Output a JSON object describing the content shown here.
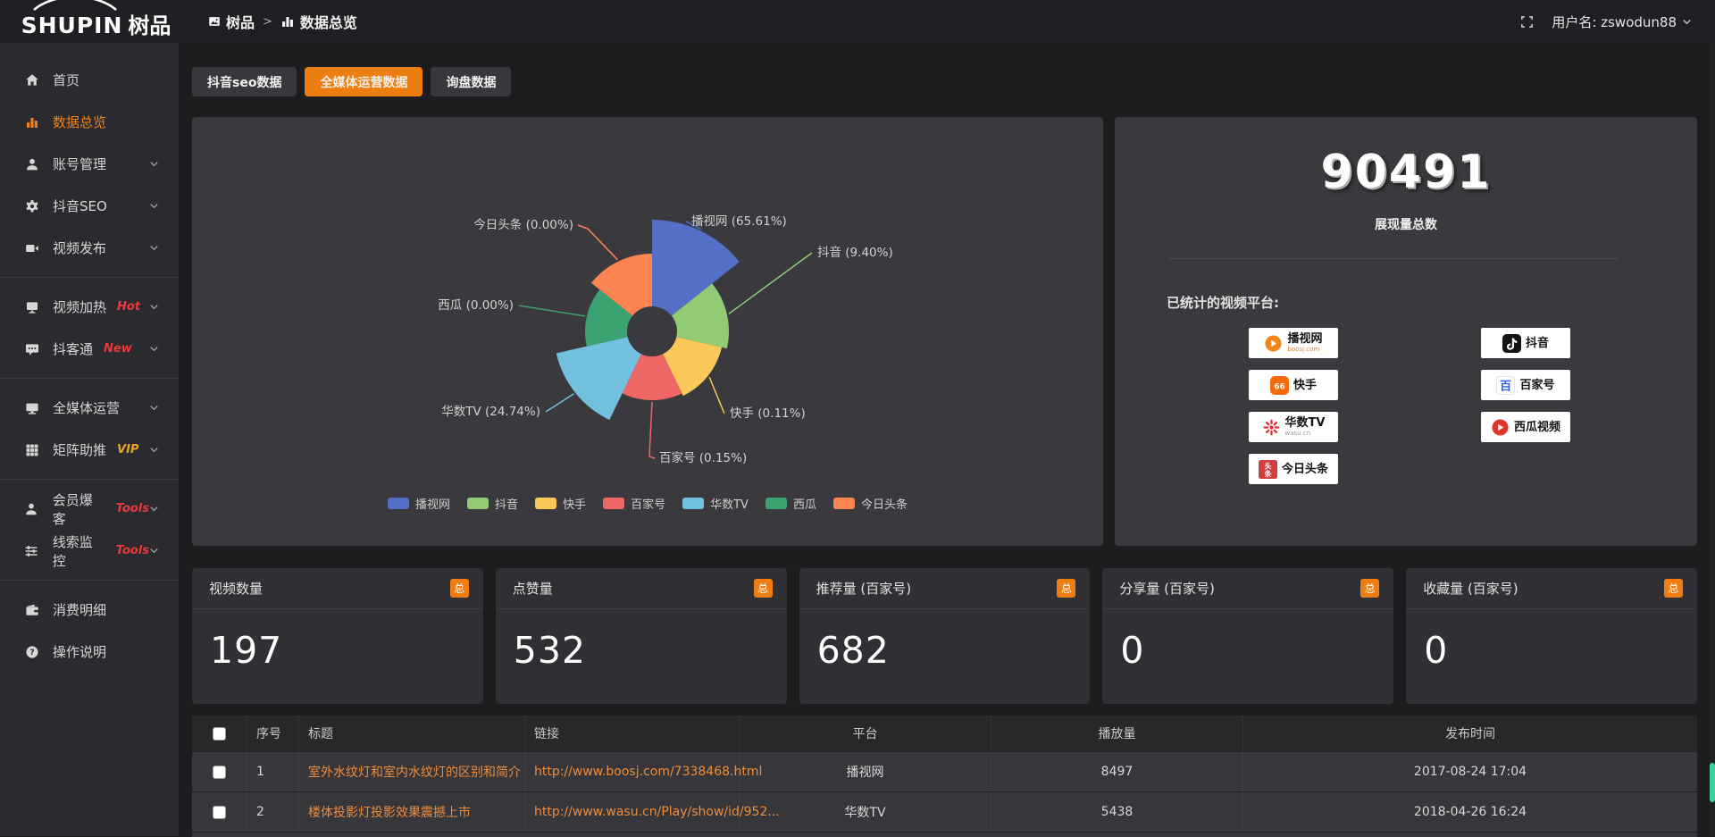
{
  "header": {
    "logo_en": "SHUPIN",
    "logo_cn": "树品",
    "breadcrumb_root": "树品",
    "breadcrumb_separator": ">",
    "breadcrumb_current": "数据总览",
    "username": "用户名: zswodun88"
  },
  "sidebar": {
    "items": [
      {
        "label": "首页",
        "icon": "home-icon"
      },
      {
        "label": "数据总览",
        "icon": "bar-chart-icon",
        "active": true
      },
      {
        "label": "账号管理",
        "icon": "user-icon",
        "chevron": true
      },
      {
        "label": "抖音SEO",
        "icon": "gear-icon",
        "chevron": true
      },
      {
        "label": "视频发布",
        "icon": "video-icon",
        "chevron": true,
        "divider_after": true
      },
      {
        "label": "视频加热",
        "icon": "screen-icon",
        "tag": "Hot",
        "tag_color": "#e83a3a",
        "chevron": true
      },
      {
        "label": "抖客通",
        "icon": "chat-icon",
        "tag": "New",
        "tag_color": "#e83a3a",
        "chevron": true,
        "divider_after": true
      },
      {
        "label": "全媒体运营",
        "icon": "monitor-icon",
        "chevron": true
      },
      {
        "label": "矩阵助推",
        "icon": "grid-icon",
        "tag": "VIP",
        "tag_color": "#e9a423",
        "chevron": true,
        "divider_after": true
      },
      {
        "label": "会员爆客",
        "icon": "member-icon",
        "tag": "Tools",
        "tag_color": "#e83a3a",
        "chevron": true
      },
      {
        "label": "线索监控",
        "icon": "sliders-icon",
        "tag": "Tools",
        "tag_color": "#e83a3a",
        "chevron": true,
        "divider_after": true
      },
      {
        "label": "消费明细",
        "icon": "wallet-icon"
      },
      {
        "label": "操作说明",
        "icon": "question-icon"
      }
    ]
  },
  "tabs": [
    {
      "label": "抖音seo数据",
      "active": false
    },
    {
      "label": "全媒体运营数据",
      "active": true
    },
    {
      "label": "询盘数据",
      "active": false
    }
  ],
  "chart_data": {
    "type": "pie",
    "subtype": "nightingale-rose",
    "legend_position": "bottom",
    "items": [
      {
        "name": "播视网",
        "percent": "65.61",
        "color": "#5470c6",
        "radius_px": 125
      },
      {
        "name": "抖音",
        "percent": "9.40",
        "color": "#91cc75",
        "radius_px": 86
      },
      {
        "name": "快手",
        "percent": "0.11",
        "color": "#fac858",
        "radius_px": 80
      },
      {
        "name": "百家号",
        "percent": "0.15",
        "color": "#ee6666",
        "radius_px": 77
      },
      {
        "name": "华数TV",
        "percent": "24.74",
        "color": "#73c0de",
        "radius_px": 110
      },
      {
        "name": "西瓜",
        "percent": "0.00",
        "color": "#3ba272",
        "radius_px": 75
      },
      {
        "name": "今日头条",
        "percent": "0.00",
        "color": "#fc8452",
        "radius_px": 87
      }
    ]
  },
  "summary": {
    "total": "90491",
    "total_label": "展现量总数",
    "platforms_label": "已统计的视频平台:",
    "platforms": [
      {
        "name": "播视网",
        "sub": "boosj.com",
        "sub_color": "#f08519",
        "icon": "boosj-icon",
        "col": "left"
      },
      {
        "name": "快手",
        "icon": "kuaishou-icon",
        "col": "left"
      },
      {
        "name": "华数TV",
        "sub": "wasu.cn",
        "sub_color": "#999999",
        "icon": "wasu-icon",
        "col": "left"
      },
      {
        "name": "今日头条",
        "icon": "toutiao-icon",
        "col": "left"
      },
      {
        "name": "抖音",
        "icon": "douyin-icon",
        "col": "right"
      },
      {
        "name": "百家号",
        "icon": "baijiahao-icon",
        "col": "right"
      },
      {
        "name": "西瓜视频",
        "icon": "xigua-icon",
        "col": "right"
      }
    ]
  },
  "stat_cards": [
    {
      "title": "视频数量",
      "badge": "总",
      "value": "197"
    },
    {
      "title": "点赞量",
      "badge": "总",
      "value": "532"
    },
    {
      "title": "推荐量 (百家号)",
      "badge": "总",
      "value": "682"
    },
    {
      "title": "分享量 (百家号)",
      "badge": "总",
      "value": "0"
    },
    {
      "title": "收藏量 (百家号)",
      "badge": "总",
      "value": "0"
    }
  ],
  "table": {
    "columns": [
      "",
      "序号",
      "标题",
      "链接",
      "平台",
      "播放量",
      "发布时间"
    ],
    "rows": [
      {
        "no": "1",
        "title": "室外水纹灯和室内水纹灯的区别和简介",
        "link": "http://www.boosj.com/7338468.html",
        "platform": "播视网",
        "plays": "8497",
        "time": "2017-08-24 17:04"
      },
      {
        "no": "2",
        "title": "楼体投影灯投影效果震撼上市",
        "link": "http://www.wasu.cn/Play/show/id/952...",
        "platform": "华数TV",
        "plays": "5438",
        "time": "2018-04-26 16:24"
      }
    ]
  },
  "colors": {
    "accent": "#ec7e11",
    "link_orange": "#ee8b3c",
    "scroll_thumb": "#3fd0a0"
  }
}
